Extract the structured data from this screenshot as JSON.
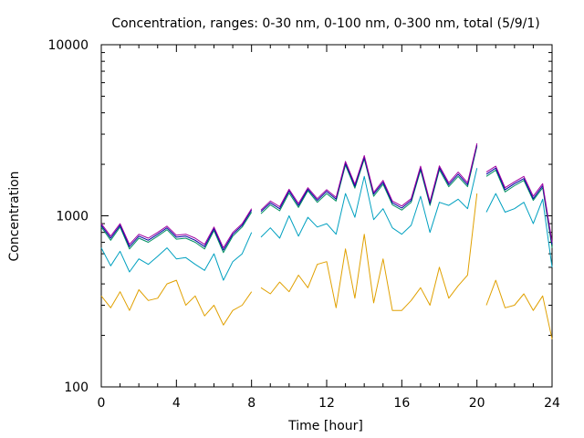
{
  "chart_data": {
    "type": "line",
    "title": "Concentration, ranges: 0-30 nm, 0-100 nm, 0-300 nm, total (5/9/1)",
    "xlabel": "Time [hour]",
    "ylabel": "Concentration",
    "xlim": [
      0,
      24
    ],
    "ylim": [
      100,
      10000
    ],
    "y_scale": "log",
    "x_ticks": [
      0,
      4,
      8,
      12,
      16,
      20,
      24
    ],
    "x_tick_labels": [
      "0",
      "4",
      "8",
      "12",
      "16",
      "20",
      "24"
    ],
    "y_ticks": [
      100,
      1000,
      10000
    ],
    "y_tick_labels": [
      "100",
      "1000",
      "10000"
    ],
    "grid": false,
    "legend": "none",
    "gaps": [
      [
        8.0,
        8.3
      ],
      [
        20.2,
        20.5
      ]
    ],
    "series": [
      {
        "color": "#e0a000",
        "values_x": [
          0,
          0.5,
          1,
          1.5,
          2,
          2.5,
          3,
          3.5,
          4,
          4.5,
          5,
          5.5,
          6,
          6.5,
          7,
          7.5,
          8,
          8.5,
          9,
          9.5,
          10,
          10.5,
          11,
          11.5,
          12,
          12.5,
          13,
          13.5,
          14,
          14.5,
          15,
          15.5,
          16,
          16.5,
          17,
          17.5,
          18,
          18.5,
          19,
          19.5,
          20,
          20.5,
          21,
          21.5,
          22,
          22.5,
          23,
          23.5,
          24
        ],
        "values_y": [
          340,
          290,
          360,
          280,
          370,
          320,
          330,
          400,
          420,
          300,
          340,
          260,
          300,
          230,
          280,
          300,
          360,
          380,
          350,
          410,
          360,
          450,
          380,
          520,
          540,
          290,
          640,
          330,
          780,
          310,
          560,
          280,
          280,
          320,
          380,
          300,
          500,
          330,
          390,
          450,
          1350,
          300,
          420,
          290,
          300,
          350,
          280,
          340,
          190
        ]
      },
      {
        "color": "#00a0c0",
        "values_x": [
          0,
          0.5,
          1,
          1.5,
          2,
          2.5,
          3,
          3.5,
          4,
          4.5,
          5,
          5.5,
          6,
          6.5,
          7,
          7.5,
          8,
          8.5,
          9,
          9.5,
          10,
          10.5,
          11,
          11.5,
          12,
          12.5,
          13,
          13.5,
          14,
          14.5,
          15,
          15.5,
          16,
          16.5,
          17,
          17.5,
          18,
          18.5,
          19,
          19.5,
          20,
          20.5,
          21,
          21.5,
          22,
          22.5,
          23,
          23.5,
          24
        ],
        "values_y": [
          650,
          510,
          620,
          470,
          560,
          520,
          580,
          650,
          560,
          570,
          520,
          480,
          600,
          420,
          540,
          600,
          800,
          750,
          850,
          740,
          1000,
          760,
          980,
          860,
          900,
          780,
          1350,
          980,
          1700,
          950,
          1100,
          850,
          780,
          880,
          1300,
          800,
          1200,
          1150,
          1250,
          1100,
          1900,
          1050,
          1350,
          1050,
          1100,
          1200,
          900,
          1250,
          500
        ]
      },
      {
        "color": "#009060",
        "values_x": [
          0,
          0.5,
          1,
          1.5,
          2,
          2.5,
          3,
          3.5,
          4,
          4.5,
          5,
          5.5,
          6,
          6.5,
          7,
          7.5,
          8,
          8.5,
          9,
          9.5,
          10,
          10.5,
          11,
          11.5,
          12,
          12.5,
          13,
          13.5,
          14,
          14.5,
          15,
          15.5,
          16,
          16.5,
          17,
          17.5,
          18,
          18.5,
          19,
          19.5,
          20,
          20.5,
          21,
          21.5,
          22,
          22.5,
          23,
          23.5,
          24
        ],
        "values_y": [
          860,
          720,
          860,
          640,
          740,
          700,
          760,
          830,
          730,
          740,
          700,
          640,
          820,
          610,
          760,
          860,
          1050,
          1030,
          1160,
          1070,
          1360,
          1120,
          1400,
          1200,
          1350,
          1220,
          1980,
          1450,
          2150,
          1300,
          1530,
          1160,
          1080,
          1200,
          1850,
          1150,
          1860,
          1480,
          1700,
          1480,
          2550,
          1700,
          1850,
          1380,
          1500,
          1610,
          1230,
          1460,
          650
        ]
      },
      {
        "color": "#0000a0",
        "values_x": [
          0,
          0.5,
          1,
          1.5,
          2,
          2.5,
          3,
          3.5,
          4,
          4.5,
          5,
          5.5,
          6,
          6.5,
          7,
          7.5,
          8,
          8.5,
          9,
          9.5,
          10,
          10.5,
          11,
          11.5,
          12,
          12.5,
          13,
          13.5,
          14,
          14.5,
          15,
          15.5,
          16,
          16.5,
          17,
          17.5,
          18,
          18.5,
          19,
          19.5,
          20,
          20.5,
          21,
          21.5,
          22,
          22.5,
          23,
          23.5,
          24
        ],
        "values_y": [
          880,
          740,
          880,
          660,
          760,
          720,
          780,
          850,
          750,
          760,
          720,
          660,
          840,
          630,
          780,
          880,
          1080,
          1060,
          1190,
          1100,
          1400,
          1150,
          1430,
          1230,
          1390,
          1250,
          2030,
          1490,
          2200,
          1340,
          1570,
          1190,
          1110,
          1230,
          1900,
          1180,
          1910,
          1520,
          1750,
          1520,
          2600,
          1750,
          1900,
          1420,
          1540,
          1650,
          1260,
          1500,
          680
        ]
      },
      {
        "color": "#a000a0",
        "values_x": [
          0,
          0.5,
          1,
          1.5,
          2,
          2.5,
          3,
          3.5,
          4,
          4.5,
          5,
          5.5,
          6,
          6.5,
          7,
          7.5,
          8,
          8.5,
          9,
          9.5,
          10,
          10.5,
          11,
          11.5,
          12,
          12.5,
          13,
          13.5,
          14,
          14.5,
          15,
          15.5,
          16,
          16.5,
          17,
          17.5,
          18,
          18.5,
          19,
          19.5,
          20,
          20.5,
          21,
          21.5,
          22,
          22.5,
          23,
          23.5,
          24
        ],
        "values_y": [
          900,
          760,
          900,
          680,
          780,
          740,
          800,
          870,
          770,
          780,
          740,
          680,
          860,
          650,
          800,
          900,
          1100,
          1080,
          1220,
          1130,
          1430,
          1180,
          1460,
          1260,
          1420,
          1280,
          2080,
          1530,
          2250,
          1370,
          1610,
          1220,
          1140,
          1260,
          1950,
          1210,
          1960,
          1560,
          1800,
          1560,
          2650,
          1800,
          1950,
          1460,
          1580,
          1700,
          1300,
          1540,
          700
        ]
      }
    ]
  }
}
